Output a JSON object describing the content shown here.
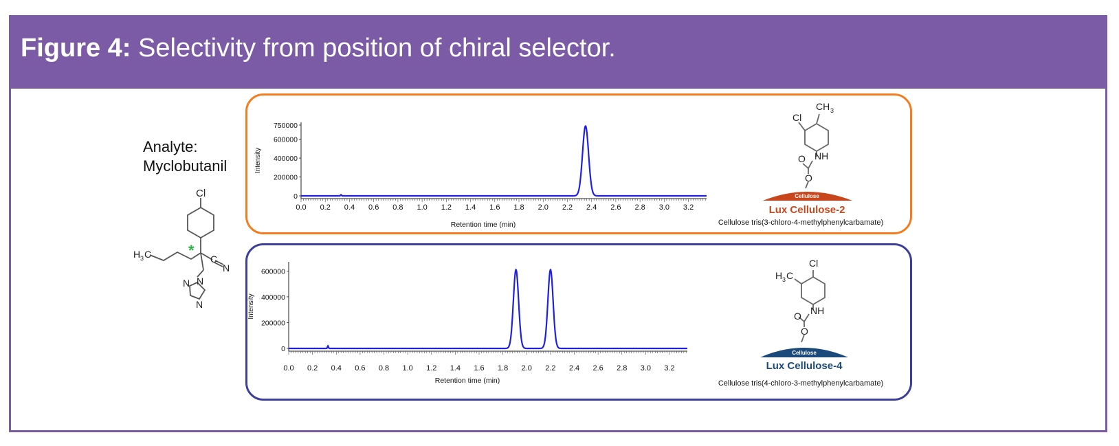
{
  "header": {
    "figure_label": "Figure 4:",
    "title": "Selectivity from position of chiral selector."
  },
  "analyte": {
    "label": "Analyte:",
    "name": "Myclobutanil"
  },
  "myclobutanil_structure": {
    "cl": "Cl",
    "h3c": "H",
    "h3c_sub": "3",
    "h3c_c": "C",
    "cn_c": "C",
    "cn_n": "N",
    "n1": "N",
    "n2": "N",
    "n3": "N",
    "chiral_mark": "*"
  },
  "columns": [
    {
      "name": "Lux Cellulose-2",
      "selector": "Cellulose tris(3-chloro-4-methylphenylcarbamate)",
      "support": "Cellulose",
      "color": "#c8461d",
      "structure": {
        "cl": "Cl",
        "ch3": "CH",
        "ch3_sub": "3",
        "nh": "NH",
        "o1": "O",
        "o2": "O"
      }
    },
    {
      "name": "Lux Cellulose-4",
      "selector": "Cellulose tris(4-chloro-3-methylphenylcarbamate)",
      "support": "Cellulose",
      "color": "#1b4a7a",
      "structure": {
        "cl": "Cl",
        "h3c": "H",
        "h3c_sub": "3",
        "h3c_c": "C",
        "nh": "NH",
        "o1": "O",
        "o2": "O"
      }
    }
  ],
  "chart_data": [
    {
      "type": "line",
      "title": "",
      "xlabel": "Retention time (min)",
      "ylabel": "Intensity",
      "xlim": [
        0,
        3.35
      ],
      "ylim": [
        0,
        750000
      ],
      "xticks": [
        "0.0",
        "0.2",
        "0.4",
        "0.6",
        "0.8",
        "1.0",
        "1.2",
        "1.4",
        "1.6",
        "1.8",
        "2.0",
        "2.2",
        "2.4",
        "2.6",
        "2.8",
        "3.0",
        "3.2"
      ],
      "yticks": [
        "750000",
        "600000",
        "400000",
        "200000",
        "0"
      ],
      "series": [
        {
          "color": "#2020e0",
          "peaks": [
            {
              "x": 0.33,
              "y": 12000,
              "sigma": 0.004
            },
            {
              "x": 2.35,
              "y": 740000,
              "sigma": 0.025
            }
          ]
        }
      ]
    },
    {
      "type": "line",
      "title": "",
      "xlabel": "Retention time (min)",
      "ylabel": "Intensity",
      "xlim": [
        0,
        3.35
      ],
      "ylim": [
        0,
        650000
      ],
      "xticks": [
        "0.0",
        "0.2",
        "0.4",
        "0.6",
        "0.8",
        "1.0",
        "1.2",
        "1.4",
        "1.6",
        "1.8",
        "2.0",
        "2.2",
        "2.4",
        "2.6",
        "2.8",
        "3.0",
        "3.2"
      ],
      "yticks": [
        "600000",
        "400000",
        "200000",
        "0"
      ],
      "series": [
        {
          "color": "#2020e0",
          "peaks": [
            {
              "x": 0.33,
              "y": 20000,
              "sigma": 0.004
            },
            {
              "x": 1.91,
              "y": 610000,
              "sigma": 0.022
            },
            {
              "x": 2.2,
              "y": 610000,
              "sigma": 0.022
            }
          ]
        }
      ]
    }
  ]
}
